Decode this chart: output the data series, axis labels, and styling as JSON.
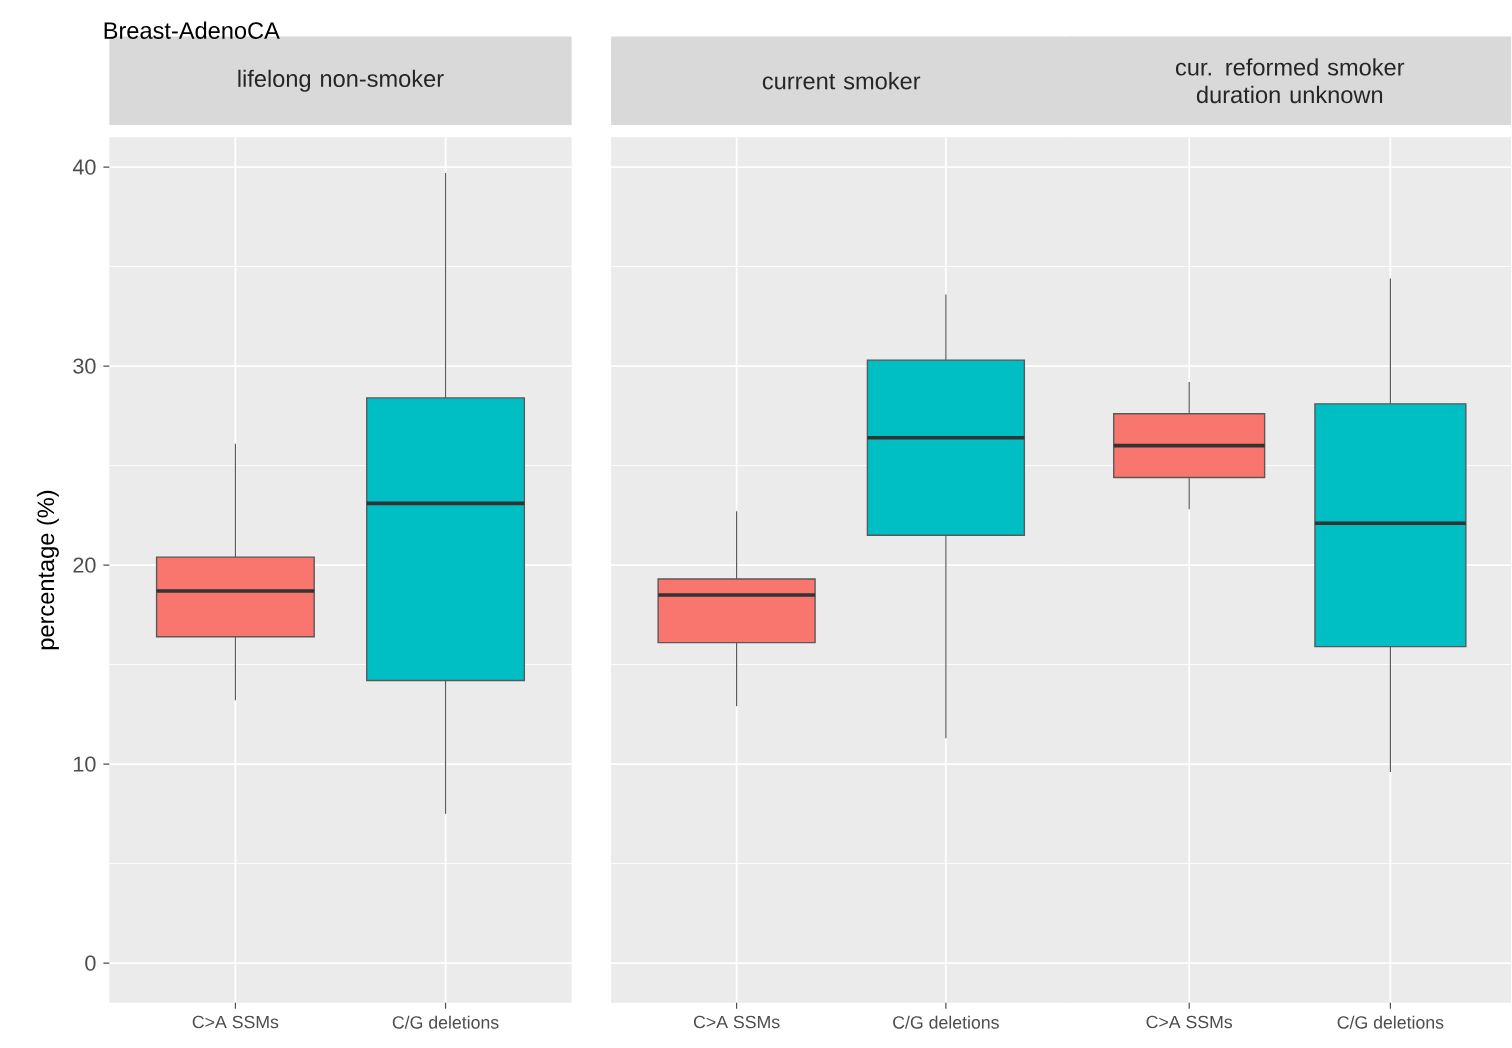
{
  "chart_data": [
    {
      "type": "box",
      "title": "Breast-AdenoCA",
      "subtitle": "lifelong non-smoker",
      "ylabel": "percentage (%)",
      "categories": [
        "C>A SSMs",
        "C/G deletions"
      ],
      "colors": [
        "#f8766d",
        "#00bfc4"
      ],
      "ylim": [
        -2,
        41.5
      ],
      "yticks": [
        0,
        10,
        20,
        30,
        40
      ],
      "grid": true,
      "boxes": [
        {
          "low": 13.2,
          "q1": 16.4,
          "median": 18.7,
          "q3": 20.4,
          "high": 26.1
        },
        {
          "low": 7.5,
          "q1": 14.2,
          "median": 23.1,
          "q3": 28.4,
          "high": 39.7
        }
      ]
    },
    {
      "type": "box",
      "subtitle": "current smoker",
      "categories": [
        "C>A SSMs",
        "C/G deletions"
      ],
      "colors": [
        "#f8766d",
        "#00bfc4"
      ],
      "ylim": [
        -2,
        41.5
      ],
      "yticks": [
        0,
        10,
        20,
        30,
        40
      ],
      "grid": true,
      "tick_labels": "x",
      "boxes": [
        {
          "low": 12.9,
          "q1": 16.1,
          "median": 18.5,
          "q3": 19.3,
          "high": 22.7
        },
        {
          "low": 11.3,
          "q1": 21.5,
          "median": 26.4,
          "q3": 30.3,
          "high": 33.6
        }
      ]
    },
    {
      "type": "box",
      "subtitle": "cur. reformed smoker duration unknown",
      "categories": [
        "C>A SSMs",
        "C/G deletions"
      ],
      "colors": [
        "#f8766d",
        "#00bfc4"
      ],
      "ylim": [
        -2,
        41.5
      ],
      "yticks": [
        0,
        10,
        20,
        30,
        40
      ],
      "grid": true,
      "tick_labels": "x",
      "boxes": [
        {
          "low": 22.8,
          "q1": 24.4,
          "median": 26.0,
          "q3": 27.6,
          "high": 29.2
        },
        {
          "low": 9.6,
          "q1": 15.9,
          "median": 22.1,
          "q3": 28.1,
          "high": 34.4
        }
      ]
    }
  ]
}
